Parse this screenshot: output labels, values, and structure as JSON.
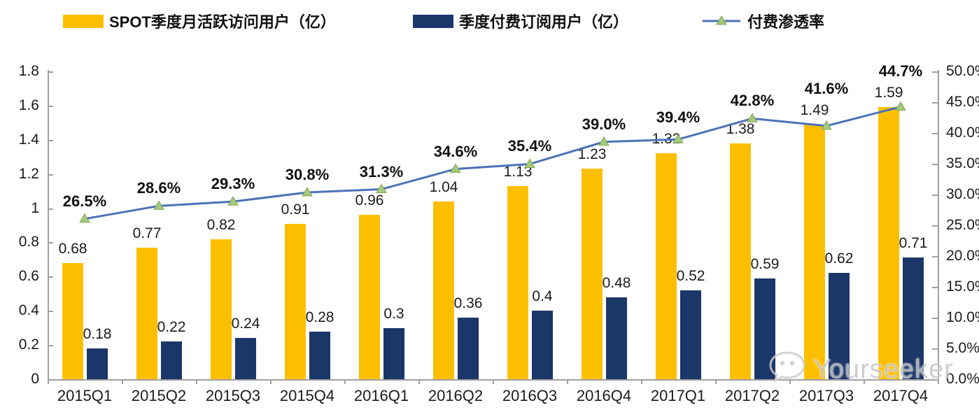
{
  "legend": {
    "items": [
      {
        "label": "SPOT季度月活跃访问用户（亿）",
        "type": "bar",
        "color": "#FCBF00"
      },
      {
        "label": "季度付费订阅用户（亿）",
        "type": "bar",
        "color": "#1B3668"
      },
      {
        "label": "付费渗透率",
        "type": "line",
        "color": "#4C72B8",
        "marker": "triangle",
        "marker_color": "#A3C97B"
      }
    ]
  },
  "chart_data": {
    "type": "combo bar+line",
    "categories": [
      "2015Q1",
      "2015Q2",
      "2015Q3",
      "2015Q4",
      "2016Q1",
      "2016Q2",
      "2016Q3",
      "2016Q4",
      "2017Q1",
      "2017Q2",
      "2017Q3",
      "2017Q4"
    ],
    "series": [
      {
        "name": "SPOT季度月活跃访问用户（亿）",
        "type": "bar",
        "axis": "left",
        "color": "#FCBF00",
        "values": [
          0.68,
          0.77,
          0.82,
          0.91,
          0.96,
          1.04,
          1.13,
          1.23,
          1.32,
          1.38,
          1.49,
          1.59
        ],
        "labels": [
          "0.68",
          "0.77",
          "0.82",
          "0.91",
          "0.96",
          "1.04",
          "1.13",
          "1.23",
          "1.32",
          "1.38",
          "1.49",
          "1.59"
        ]
      },
      {
        "name": "季度付费订阅用户（亿）",
        "type": "bar",
        "axis": "left",
        "color": "#1B3668",
        "values": [
          0.18,
          0.22,
          0.24,
          0.28,
          0.3,
          0.36,
          0.4,
          0.48,
          0.52,
          0.59,
          0.62,
          0.71
        ],
        "labels": [
          "0.18",
          "0.22",
          "0.24",
          "0.28",
          "0.3",
          "0.36",
          "0.4",
          "0.48",
          "0.52",
          "0.59",
          "0.62",
          "0.71"
        ]
      },
      {
        "name": "付费渗透率",
        "type": "line",
        "axis": "right",
        "color": "#4C72B8",
        "marker": "triangle",
        "marker_color": "#A3C97B",
        "values": [
          26.5,
          28.6,
          29.3,
          30.8,
          31.3,
          34.6,
          35.4,
          39.0,
          39.4,
          42.8,
          41.6,
          44.7
        ],
        "labels": [
          "26.5%",
          "28.6%",
          "29.3%",
          "30.8%",
          "31.3%",
          "34.6%",
          "35.4%",
          "39.0%",
          "39.4%",
          "42.8%",
          "41.6%",
          "44.7%"
        ]
      }
    ],
    "left_axis": {
      "min": 0,
      "max": 1.8,
      "tick_labels": [
        "0",
        "0.2",
        "0.4",
        "0.6",
        "0.8",
        "1",
        "1.2",
        "1.4",
        "1.6",
        "1.8"
      ]
    },
    "right_axis": {
      "min": 0,
      "max": 50,
      "unit": "%",
      "tick_labels": [
        "0.0%",
        "5.0%",
        "10.0%",
        "15.0%",
        "20.0%",
        "25.0%",
        "30.0%",
        "35.0%",
        "40.0%",
        "45.0%",
        "50.0%"
      ]
    },
    "grid": false,
    "legend_position": "top"
  },
  "watermark": {
    "text": "Yourseeker"
  }
}
